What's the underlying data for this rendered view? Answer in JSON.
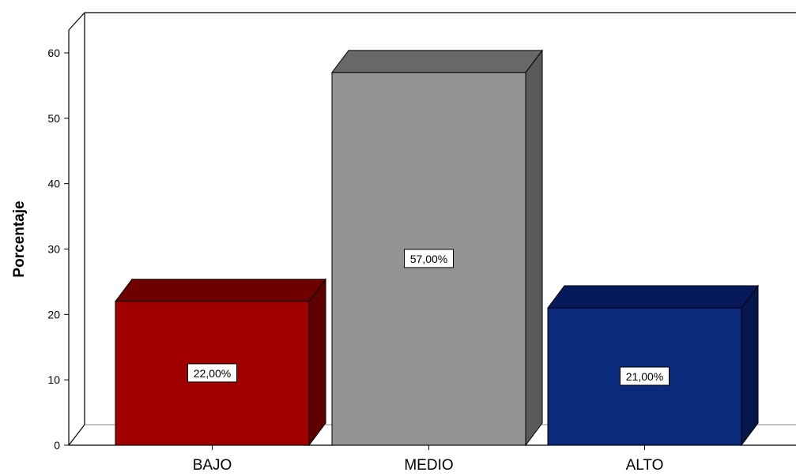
{
  "chart_data": {
    "type": "bar",
    "categories": [
      "BAJO",
      "MEDIO",
      "ALTO"
    ],
    "values": [
      22,
      57,
      21
    ],
    "data_labels": [
      "22,00%",
      "57,00%",
      "21,00%"
    ],
    "ylabel": "Porcentaje",
    "xlabel": "",
    "ylim": [
      0,
      60
    ],
    "yticks": [
      "0",
      "10",
      "20",
      "30",
      "40",
      "50",
      "60"
    ],
    "style": "3d",
    "grid": false,
    "colors": {
      "bars": [
        "#a00000",
        "#959392",
        "#0b2a7c"
      ],
      "bar_sides": [
        "#5e0000",
        "#5a5a5a",
        "#05164a"
      ],
      "bar_tops": [
        "#6e0000",
        "#686868",
        "#06195a"
      ]
    }
  }
}
